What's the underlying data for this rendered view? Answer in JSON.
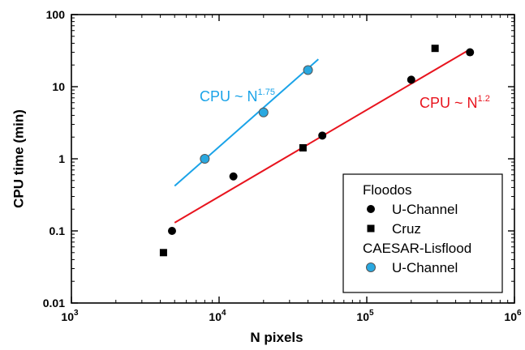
{
  "chart_data": {
    "type": "scatter",
    "xscale": "log",
    "yscale": "log",
    "xlim": [
      1000,
      1000000
    ],
    "ylim": [
      0.01,
      100
    ],
    "xlabel": "N pixels",
    "ylabel": "CPU time (min)",
    "xticks": [
      {
        "value": 1000,
        "base": "10",
        "exp": "3"
      },
      {
        "value": 10000,
        "base": "10",
        "exp": "4"
      },
      {
        "value": 100000,
        "base": "10",
        "exp": "5"
      },
      {
        "value": 1000000,
        "base": "10",
        "exp": "6"
      }
    ],
    "yticks": [
      {
        "value": 0.01,
        "label": "0.01"
      },
      {
        "value": 0.1,
        "label": "0.1"
      },
      {
        "value": 1,
        "label": "1"
      },
      {
        "value": 10,
        "label": "10"
      },
      {
        "value": 100,
        "label": "100"
      }
    ],
    "grid": false,
    "legend_position": "bottom-right",
    "legend_groups": [
      {
        "title": "Floodos",
        "entries": [
          "U-Channel",
          "Cruz"
        ]
      },
      {
        "title": "CAESAR-Lisflood",
        "entries": [
          "U-Channel"
        ]
      }
    ],
    "series": [
      {
        "group": "Floodos",
        "name": "U-Channel",
        "marker": "circle",
        "color": "#000000",
        "points": [
          [
            4800,
            0.1
          ],
          [
            12500,
            0.57
          ],
          [
            50000,
            2.1
          ],
          [
            200000,
            12.5
          ],
          [
            500000,
            30
          ]
        ]
      },
      {
        "group": "Floodos",
        "name": "Cruz",
        "marker": "square",
        "color": "#000000",
        "points": [
          [
            4200,
            0.05
          ],
          [
            37000,
            1.42
          ],
          [
            290000,
            34
          ]
        ]
      },
      {
        "group": "CAESAR-Lisflood",
        "name": "U-Channel",
        "marker": "circle",
        "color": "#29a8e0",
        "points": [
          [
            8000,
            1.0
          ],
          [
            20000,
            4.4
          ],
          [
            40000,
            17
          ]
        ]
      }
    ],
    "fits": [
      {
        "base": "CPU ~ N",
        "exp": "1.75",
        "color": "#1aa3e8",
        "x_range": [
          5000,
          47000
        ],
        "y_range": [
          0.42,
          24
        ]
      },
      {
        "base": "CPU ~ N",
        "exp": "1.2",
        "color": "#e8141e",
        "x_range": [
          5000,
          500000
        ],
        "y_range": [
          0.13,
          33
        ]
      }
    ]
  }
}
